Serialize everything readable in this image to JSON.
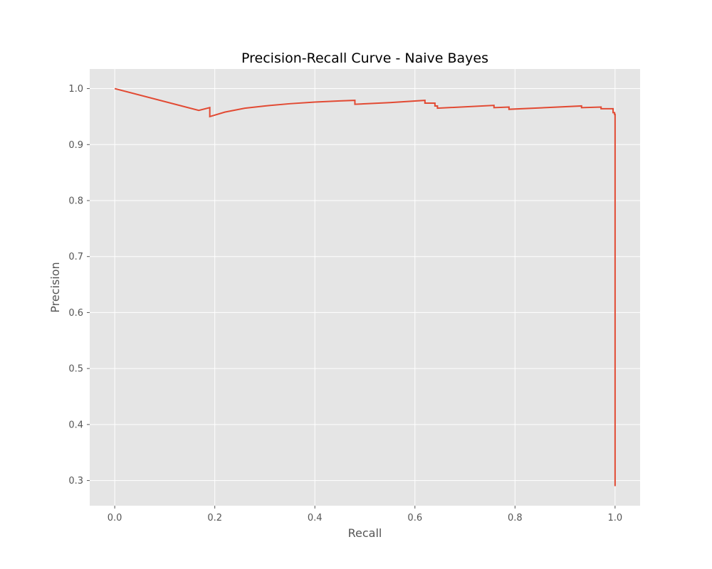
{
  "chart_data": {
    "type": "line",
    "title": "Precision-Recall Curve - Naive Bayes",
    "xlabel": "Recall",
    "ylabel": "Precision",
    "xlim": [
      -0.05,
      1.05
    ],
    "ylim": [
      0.255,
      1.035
    ],
    "grid": true,
    "style": "ggplot",
    "x_ticks": [
      0.0,
      0.2,
      0.4,
      0.6,
      0.8,
      1.0
    ],
    "y_ticks": [
      0.3,
      0.4,
      0.5,
      0.6,
      0.7,
      0.8,
      0.9,
      1.0
    ],
    "x_tick_labels": [
      "0.0",
      "0.2",
      "0.4",
      "0.6",
      "0.8",
      "1.0"
    ],
    "y_tick_labels": [
      "0.3",
      "0.4",
      "0.5",
      "0.6",
      "0.7",
      "0.8",
      "0.9",
      "1.0"
    ],
    "colors": {
      "background": "#e5e5e5",
      "grid": "#ffffff",
      "line": "#e24a33"
    },
    "series": [
      {
        "x": [
          0.0,
          0.168,
          0.19,
          0.19,
          0.22,
          0.26,
          0.3,
          0.35,
          0.4,
          0.45,
          0.48,
          0.48,
          0.55,
          0.62,
          0.62,
          0.64,
          0.64,
          0.645,
          0.645,
          0.758,
          0.758,
          0.788,
          0.788,
          0.933,
          0.933,
          0.972,
          0.972,
          0.996,
          0.996,
          0.999,
          0.999,
          1.0,
          1.0
        ],
        "y": [
          1.0,
          0.961,
          0.966,
          0.95,
          0.958,
          0.965,
          0.969,
          0.973,
          0.976,
          0.978,
          0.979,
          0.972,
          0.975,
          0.979,
          0.974,
          0.974,
          0.969,
          0.969,
          0.965,
          0.97,
          0.966,
          0.967,
          0.963,
          0.969,
          0.966,
          0.967,
          0.964,
          0.964,
          0.957,
          0.957,
          0.954,
          0.954,
          0.29
        ]
      }
    ]
  }
}
